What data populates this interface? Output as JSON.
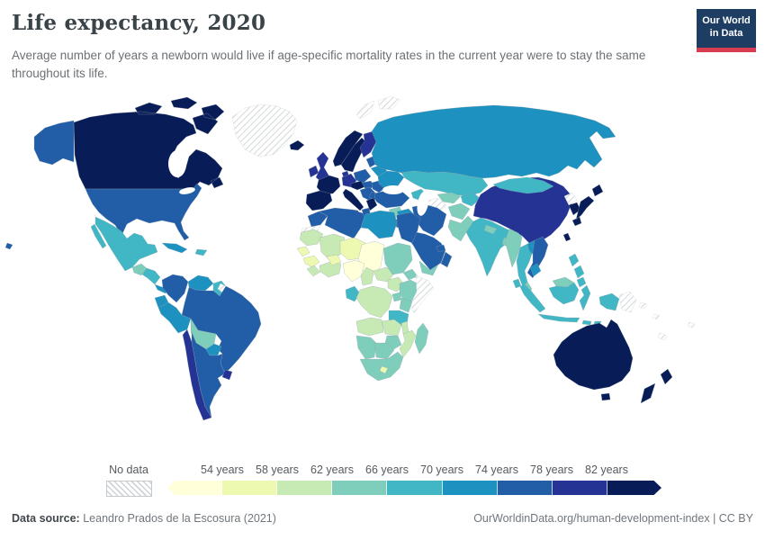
{
  "header": {
    "title": "Life expectancy, 2020",
    "subtitle": "Average number of years a newborn would live if age-specific mortality rates in the current year were to stay the same throughout its life.",
    "logo_line1": "Our World",
    "logo_line2": "in Data",
    "logo_bg_color": "#1d3d63",
    "logo_accent_color": "#d73c50"
  },
  "footer": {
    "source_label": "Data source:",
    "source_text": " Leandro Prados de la Escosura (2021)",
    "right_text": "OurWorldinData.org/human-development-index | CC BY"
  },
  "chart_data": {
    "type": "choropleth_map",
    "title": "Life expectancy, 2020",
    "unit": "years",
    "year": 2020,
    "legend": {
      "no_data_label": "No data",
      "tick_labels": [
        "54 years",
        "58 years",
        "62 years",
        "66 years",
        "70 years",
        "74 years",
        "78 years",
        "82 years"
      ],
      "bin_edges": [
        54,
        58,
        62,
        66,
        70,
        74,
        78,
        82
      ],
      "bins": [
        "<54",
        "54-58",
        "58-62",
        "62-66",
        "66-70",
        "70-74",
        "74-78",
        "78-82",
        ">82"
      ],
      "bin_colors": [
        "#ffffd9",
        "#edf8b1",
        "#c7e9b4",
        "#7fcdbb",
        "#41b6c4",
        "#1d91c0",
        "#225ea8",
        "#253494",
        "#081d58"
      ],
      "no_data_style": "gray-diagonal-hatch"
    },
    "countries": [
      {
        "id": "alaska",
        "bin": 6
      },
      {
        "id": "canada",
        "bin": 8
      },
      {
        "id": "greenland",
        "bin": null
      },
      {
        "id": "usa",
        "bin": 6
      },
      {
        "id": "hawaii",
        "bin": 6
      },
      {
        "id": "mexico",
        "bin": 4
      },
      {
        "id": "guatemala",
        "bin": 3
      },
      {
        "id": "honduras-nicaragua",
        "bin": 4
      },
      {
        "id": "costa-rica-panama",
        "bin": 5
      },
      {
        "id": "cuba",
        "bin": 5
      },
      {
        "id": "hispaniola",
        "bin": 4
      },
      {
        "id": "colombia",
        "bin": 6
      },
      {
        "id": "venezuela",
        "bin": 5
      },
      {
        "id": "guyanas",
        "bin": 4
      },
      {
        "id": "french-guiana",
        "bin": null
      },
      {
        "id": "ecuador",
        "bin": 5
      },
      {
        "id": "peru",
        "bin": 5
      },
      {
        "id": "brazil",
        "bin": 6
      },
      {
        "id": "bolivia",
        "bin": 3
      },
      {
        "id": "paraguay",
        "bin": 5
      },
      {
        "id": "chile",
        "bin": 7
      },
      {
        "id": "argentina",
        "bin": 6
      },
      {
        "id": "uruguay",
        "bin": 7
      },
      {
        "id": "iceland",
        "bin": 8
      },
      {
        "id": "ireland",
        "bin": 7
      },
      {
        "id": "uk",
        "bin": 7
      },
      {
        "id": "norway",
        "bin": 8
      },
      {
        "id": "sweden",
        "bin": 8
      },
      {
        "id": "finland",
        "bin": 7
      },
      {
        "id": "denmark",
        "bin": 7
      },
      {
        "id": "baltics",
        "bin": 6
      },
      {
        "id": "belarus",
        "bin": 5
      },
      {
        "id": "poland",
        "bin": 6
      },
      {
        "id": "germany",
        "bin": 7
      },
      {
        "id": "france",
        "bin": 8
      },
      {
        "id": "iberia",
        "bin": 8
      },
      {
        "id": "italy",
        "bin": 8
      },
      {
        "id": "switzerland-austria",
        "bin": 8
      },
      {
        "id": "hungary",
        "bin": 6
      },
      {
        "id": "balkans",
        "bin": 6
      },
      {
        "id": "romania",
        "bin": 6
      },
      {
        "id": "bulgaria",
        "bin": 6
      },
      {
        "id": "greece",
        "bin": 8
      },
      {
        "id": "ukraine",
        "bin": 5
      },
      {
        "id": "russia",
        "bin": 5
      },
      {
        "id": "svalbard",
        "bin": null
      },
      {
        "id": "kazakhstan",
        "bin": 4
      },
      {
        "id": "uzbekistan",
        "bin": 3
      },
      {
        "id": "turkmenistan",
        "bin": null
      },
      {
        "id": "kyrgyzstan-tajikistan",
        "bin": 4
      },
      {
        "id": "caucasus",
        "bin": 4
      },
      {
        "id": "turkey",
        "bin": 6
      },
      {
        "id": "syria",
        "bin": 3
      },
      {
        "id": "israel",
        "bin": 8
      },
      {
        "id": "jordan",
        "bin": 6
      },
      {
        "id": "iraq",
        "bin": 5
      },
      {
        "id": "iran",
        "bin": 6
      },
      {
        "id": "saudi-arabia",
        "bin": 6
      },
      {
        "id": "yemen",
        "bin": 3
      },
      {
        "id": "oman",
        "bin": 6
      },
      {
        "id": "uae",
        "bin": 6
      },
      {
        "id": "afghanistan",
        "bin": 3
      },
      {
        "id": "pakistan",
        "bin": 3
      },
      {
        "id": "india",
        "bin": 4
      },
      {
        "id": "nepal",
        "bin": 3
      },
      {
        "id": "bangladesh",
        "bin": 3
      },
      {
        "id": "sri-lanka",
        "bin": 4
      },
      {
        "id": "china",
        "bin": 7
      },
      {
        "id": "mongolia",
        "bin": 4
      },
      {
        "id": "north-korea",
        "bin": null
      },
      {
        "id": "south-korea",
        "bin": 8
      },
      {
        "id": "japan",
        "bin": 8
      },
      {
        "id": "taiwan",
        "bin": 8
      },
      {
        "id": "myanmar",
        "bin": 3
      },
      {
        "id": "thailand",
        "bin": 4
      },
      {
        "id": "laos",
        "bin": 5
      },
      {
        "id": "vietnam",
        "bin": 6
      },
      {
        "id": "cambodia",
        "bin": 5
      },
      {
        "id": "malay-malaysia",
        "bin": 3
      },
      {
        "id": "borneo-malaysia",
        "bin": 3
      },
      {
        "id": "indonesia-sumatra",
        "bin": 4
      },
      {
        "id": "indonesia-java",
        "bin": 4
      },
      {
        "id": "indonesia-borneo",
        "bin": 4
      },
      {
        "id": "indonesia-sulawesi",
        "bin": 4
      },
      {
        "id": "indonesia-lesser-sunda",
        "bin": 4
      },
      {
        "id": "indonesia-papua",
        "bin": 4
      },
      {
        "id": "papua-new-guinea",
        "bin": null
      },
      {
        "id": "philippines",
        "bin": 4
      },
      {
        "id": "pacific-islands",
        "bin": null
      },
      {
        "id": "australia",
        "bin": 8
      },
      {
        "id": "tasmania",
        "bin": 8
      },
      {
        "id": "new-zealand",
        "bin": 8
      },
      {
        "id": "morocco",
        "bin": 6
      },
      {
        "id": "western-sahara",
        "bin": null
      },
      {
        "id": "algeria",
        "bin": 6
      },
      {
        "id": "tunisia",
        "bin": 6
      },
      {
        "id": "libya",
        "bin": 5
      },
      {
        "id": "egypt",
        "bin": 6
      },
      {
        "id": "mauritania",
        "bin": 2
      },
      {
        "id": "mali",
        "bin": 2
      },
      {
        "id": "niger",
        "bin": 1
      },
      {
        "id": "chad",
        "bin": 0
      },
      {
        "id": "senegal",
        "bin": 1
      },
      {
        "id": "guinea",
        "bin": 1
      },
      {
        "id": "sierra-leone-liberia",
        "bin": 2
      },
      {
        "id": "ivory-coast-ghana",
        "bin": 2
      },
      {
        "id": "burkina-faso",
        "bin": 1
      },
      {
        "id": "nigeria",
        "bin": 0
      },
      {
        "id": "cameroon",
        "bin": 2
      },
      {
        "id": "central-african-republic",
        "bin": 2
      },
      {
        "id": "south-sudan",
        "bin": 2
      },
      {
        "id": "sudan",
        "bin": 3
      },
      {
        "id": "eritrea",
        "bin": 3
      },
      {
        "id": "ethiopia",
        "bin": 3
      },
      {
        "id": "somalia",
        "bin": null
      },
      {
        "id": "uganda",
        "bin": 3
      },
      {
        "id": "kenya",
        "bin": 3
      },
      {
        "id": "tanzania",
        "bin": 4
      },
      {
        "id": "gabon-congo",
        "bin": 4
      },
      {
        "id": "dr-congo",
        "bin": 2
      },
      {
        "id": "angola",
        "bin": 2
      },
      {
        "id": "zambia",
        "bin": 2
      },
      {
        "id": "malawi",
        "bin": 2
      },
      {
        "id": "mozambique",
        "bin": 2
      },
      {
        "id": "zimbabwe",
        "bin": 3
      },
      {
        "id": "namibia",
        "bin": 3
      },
      {
        "id": "botswana",
        "bin": 3
      },
      {
        "id": "south-africa",
        "bin": 3
      },
      {
        "id": "lesotho",
        "bin": 1
      },
      {
        "id": "madagascar",
        "bin": 3
      }
    ]
  }
}
